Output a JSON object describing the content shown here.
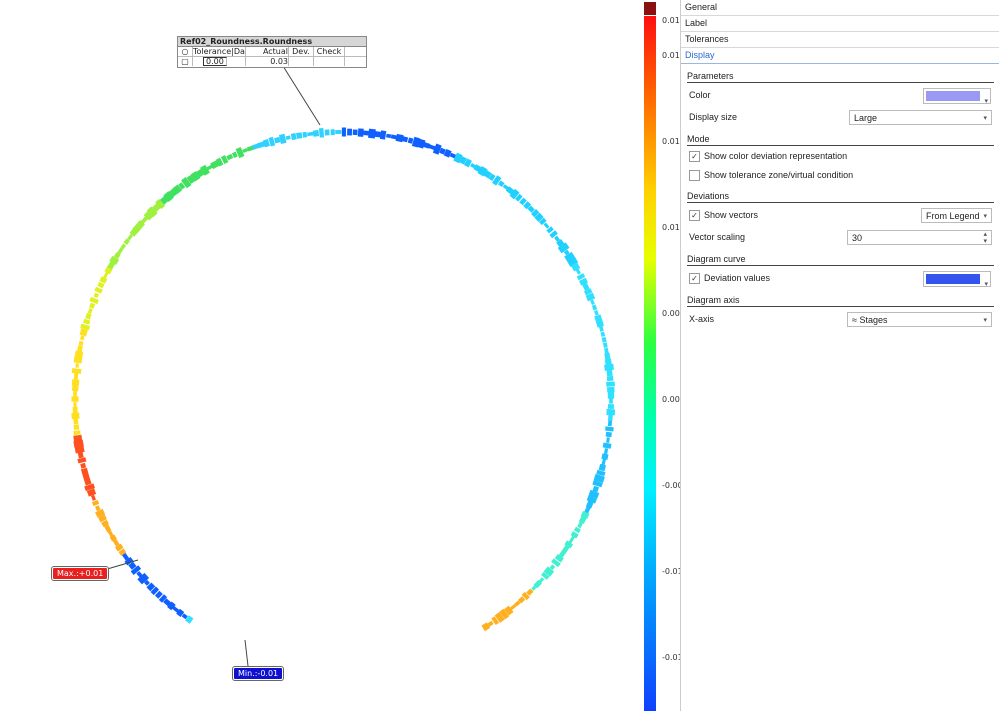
{
  "label_table": {
    "title": "Ref02_Roundness.Roundness",
    "headers": [
      "",
      "Tolerance|Datum",
      "Actual",
      "Dev.",
      "Check"
    ],
    "tolerance": "0.00",
    "actual": "0.03"
  },
  "tags": {
    "max": "Max.:+0.01",
    "min": "Min.:-0.01"
  },
  "legend": {
    "ticks": [
      "0.01",
      "0.01",
      "0.01",
      "0.01",
      "0.00",
      "0.00",
      "-0.00",
      "-0.01",
      "-0.01"
    ],
    "top_color": "#8b1010"
  },
  "panel": {
    "tabs": [
      "General",
      "Label",
      "Tolerances",
      "Display"
    ],
    "sections": {
      "parameters": "Parameters",
      "mode": "Mode",
      "deviations": "Deviations",
      "diagram_curve": "Diagram curve",
      "diagram_axis": "Diagram axis"
    },
    "color_label": "Color",
    "color_value": "#9a9af5",
    "display_size_label": "Display size",
    "display_size_value": "Large",
    "show_color_deviation": "Show color deviation representation",
    "show_tolerance_zone": "Show tolerance zone/virtual condition",
    "show_vectors": "Show vectors",
    "vectors_source": "From Legend",
    "vector_scaling_label": "Vector scaling",
    "vector_scaling_value": "30",
    "deviation_values": "Deviation values",
    "deviation_color": "#3355ee",
    "x_axis_label": "X-axis",
    "x_axis_value": "Stages"
  }
}
